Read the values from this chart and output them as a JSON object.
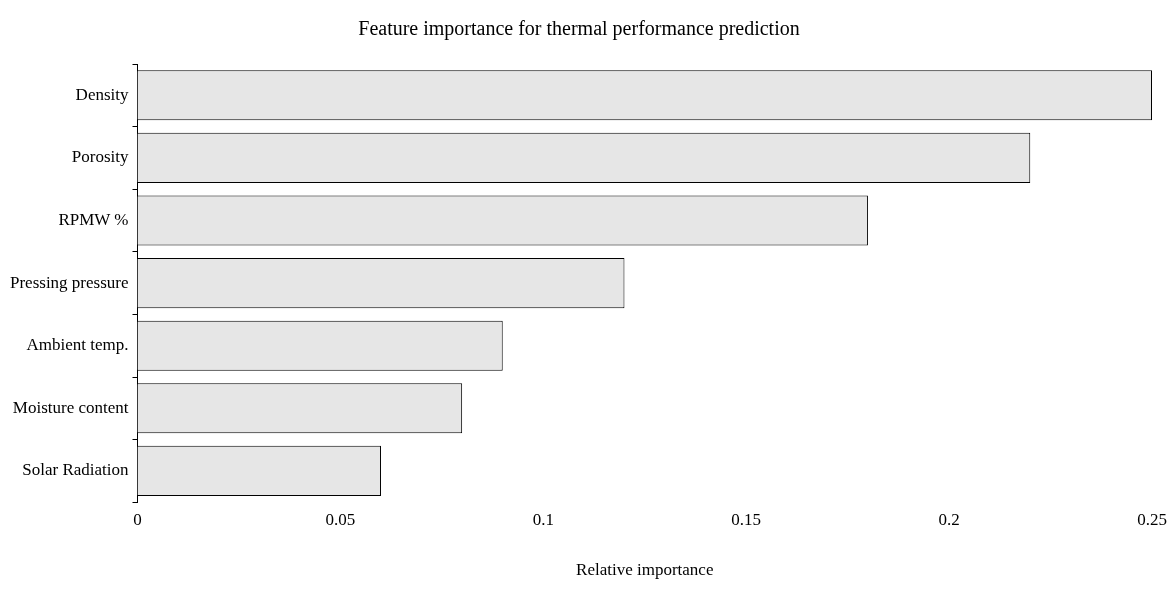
{
  "chart_data": {
    "type": "bar",
    "orientation": "horizontal",
    "title": "Feature importance for thermal performance prediction",
    "xlabel": "Relative importance",
    "categories": [
      "Density",
      "Porosity",
      "RPMW %",
      "Pressing pressure",
      "Ambient temp.",
      "Moisture content",
      "Solar Radiation"
    ],
    "values": [
      0.25,
      0.22,
      0.18,
      0.12,
      0.09,
      0.08,
      0.06
    ],
    "color": "#e6e6e6",
    "xlim": [
      0,
      0.25
    ],
    "xticks": [
      0,
      0.05,
      0.1,
      0.15,
      0.2,
      0.25
    ],
    "grid": false,
    "legend": false
  }
}
